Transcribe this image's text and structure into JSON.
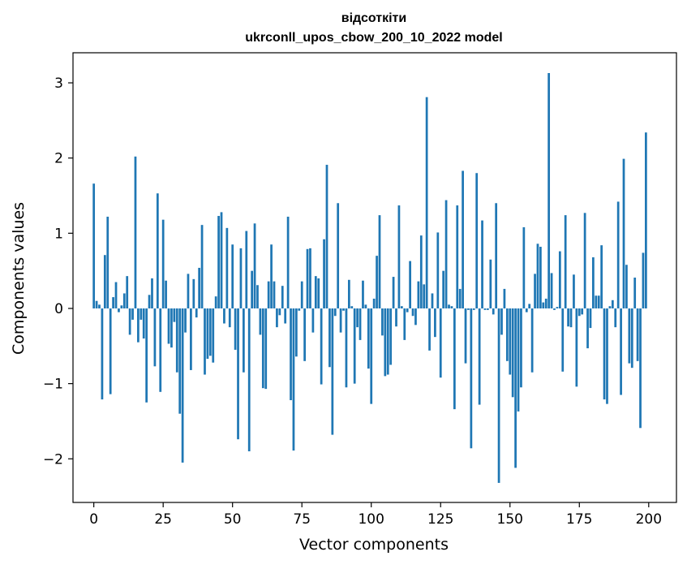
{
  "chart_data": {
    "type": "bar",
    "title": "відсоткіти",
    "subtitle": "ukrconll_upos_cbow_200_10_2022 model",
    "xlabel": "Vector components",
    "ylabel": "Components values",
    "xlim": [
      -7.5,
      210
    ],
    "ylim": [
      -2.58,
      3.4
    ],
    "xticks": [
      0,
      25,
      50,
      75,
      100,
      125,
      150,
      175,
      200
    ],
    "xtick_labels": [
      "0",
      "25",
      "50",
      "75",
      "100",
      "125",
      "150",
      "175",
      "200"
    ],
    "yticks": [
      -2,
      -1,
      0,
      1,
      2,
      3
    ],
    "ytick_labels": [
      "−2",
      "−1",
      "0",
      "1",
      "2",
      "3"
    ],
    "grid": false,
    "legend": "none",
    "bar_color": "#1f77b4",
    "x": [
      0,
      1,
      2,
      3,
      4,
      5,
      6,
      7,
      8,
      9,
      10,
      11,
      12,
      13,
      14,
      15,
      16,
      17,
      18,
      19,
      20,
      21,
      22,
      23,
      24,
      25,
      26,
      27,
      28,
      29,
      30,
      31,
      32,
      33,
      34,
      35,
      36,
      37,
      38,
      39,
      40,
      41,
      42,
      43,
      44,
      45,
      46,
      47,
      48,
      49,
      50,
      51,
      52,
      53,
      54,
      55,
      56,
      57,
      58,
      59,
      60,
      61,
      62,
      63,
      64,
      65,
      66,
      67,
      68,
      69,
      70,
      71,
      72,
      73,
      74,
      75,
      76,
      77,
      78,
      79,
      80,
      81,
      82,
      83,
      84,
      85,
      86,
      87,
      88,
      89,
      90,
      91,
      92,
      93,
      94,
      95,
      96,
      97,
      98,
      99,
      100,
      101,
      102,
      103,
      104,
      105,
      106,
      107,
      108,
      109,
      110,
      111,
      112,
      113,
      114,
      115,
      116,
      117,
      118,
      119,
      120,
      121,
      122,
      123,
      124,
      125,
      126,
      127,
      128,
      129,
      130,
      131,
      132,
      133,
      134,
      135,
      136,
      137,
      138,
      139,
      140,
      141,
      142,
      143,
      144,
      145,
      146,
      147,
      148,
      149,
      150,
      151,
      152,
      153,
      154,
      155,
      156,
      157,
      158,
      159,
      160,
      161,
      162,
      163,
      164,
      165,
      166,
      167,
      168,
      169,
      170,
      171,
      172,
      173,
      174,
      175,
      176,
      177,
      178,
      179,
      180,
      181,
      182,
      183,
      184,
      185,
      186,
      187,
      188,
      189,
      190,
      191,
      192,
      193,
      194,
      195,
      196,
      197,
      198,
      199
    ],
    "values": [
      1.66,
      0.1,
      0.05,
      -1.21,
      0.71,
      1.22,
      -1.14,
      0.15,
      0.35,
      -0.05,
      0.04,
      0.2,
      0.43,
      -0.35,
      -0.15,
      2.02,
      -0.45,
      -0.15,
      -0.4,
      -1.25,
      0.18,
      0.4,
      -0.77,
      1.53,
      -1.11,
      1.18,
      0.37,
      -0.47,
      -0.52,
      -0.18,
      -0.85,
      -1.4,
      -2.05,
      -0.32,
      0.46,
      -0.82,
      0.39,
      -0.12,
      0.54,
      1.11,
      -0.88,
      -0.67,
      -0.63,
      -0.72,
      0.16,
      1.23,
      1.28,
      -0.2,
      1.07,
      -0.25,
      0.85,
      -0.55,
      -1.74,
      0.8,
      -0.85,
      1.03,
      -1.9,
      0.5,
      1.13,
      0.31,
      -0.35,
      -1.06,
      -1.07,
      0.36,
      0.85,
      0.36,
      -0.25,
      -0.09,
      0.3,
      -0.2,
      1.22,
      -1.22,
      -1.89,
      -0.64,
      -0.03,
      0.36,
      -0.7,
      0.79,
      0.8,
      -0.32,
      0.43,
      0.4,
      -1.01,
      0.92,
      1.91,
      -0.78,
      -1.68,
      -0.1,
      1.4,
      -0.32,
      -0.03,
      -1.05,
      0.38,
      0.03,
      -1.0,
      -0.25,
      -0.42,
      0.37,
      0.05,
      -0.8,
      -1.27,
      0.13,
      0.7,
      1.24,
      -0.36,
      -0.9,
      -0.88,
      -0.75,
      0.42,
      -0.24,
      1.37,
      0.03,
      -0.42,
      -0.05,
      0.63,
      -0.1,
      -0.22,
      0.36,
      0.97,
      0.32,
      2.81,
      -0.56,
      0.2,
      -0.38,
      1.01,
      -0.92,
      0.5,
      1.44,
      0.05,
      0.03,
      -1.34,
      1.37,
      0.26,
      1.83,
      -0.73,
      -0.02,
      -1.86,
      -0.02,
      1.8,
      -1.28,
      1.17,
      -0.02,
      -0.02,
      0.65,
      -0.08,
      1.4,
      -2.32,
      -0.35,
      0.26,
      -0.7,
      -0.88,
      -1.18,
      -2.12,
      -1.37,
      -1.05,
      1.08,
      -0.05,
      0.06,
      -0.85,
      0.46,
      0.86,
      0.82,
      0.08,
      0.13,
      3.13,
      0.47,
      -0.02,
      0.02,
      0.76,
      -0.84,
      1.24,
      -0.24,
      -0.25,
      0.45,
      -1.04,
      -0.1,
      -0.08,
      1.27,
      -0.53,
      -0.26,
      0.68,
      0.17,
      0.17,
      0.84,
      -1.21,
      -1.27,
      0.03,
      0.11,
      -0.25,
      1.42,
      -1.15,
      1.99,
      0.58,
      -0.73,
      -0.79,
      0.41,
      -0.7,
      -1.59,
      0.74,
      2.34
    ]
  }
}
